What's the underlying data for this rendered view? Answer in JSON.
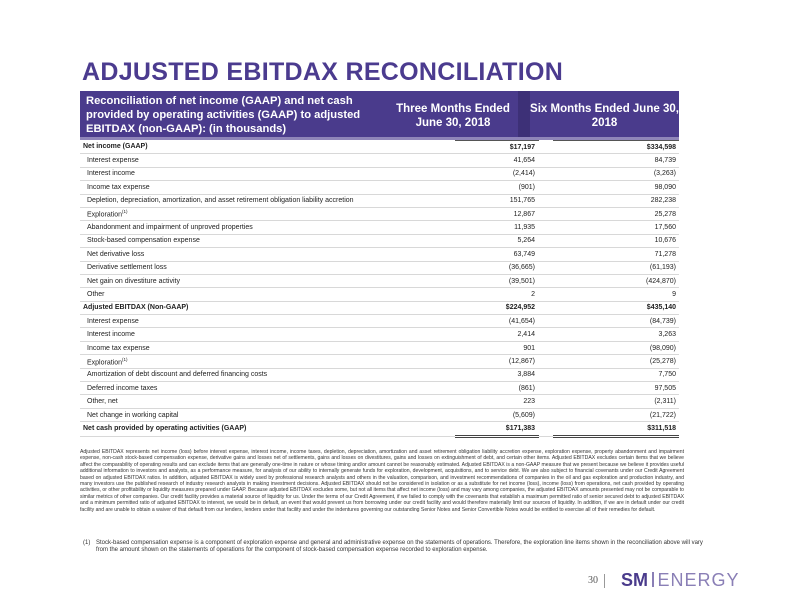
{
  "page": {
    "title": "ADJUSTED EBITDAX RECONCILIATION",
    "page_number": "30"
  },
  "table": {
    "header_label": "Reconciliation of net income (GAAP) and net cash provided by operating activities (GAAP) to adjusted EBITDAX (non-GAAP):  (in thousands)",
    "col1_header": "Three Months Ended June 30, 2018",
    "col2_header": "Six Months Ended June 30, 2018",
    "rows": [
      {
        "label": "Net income (GAAP)",
        "v1": "$17,197",
        "v2": "$334,598",
        "bold": true,
        "sup": ""
      },
      {
        "label": "Interest expense",
        "v1": "41,654",
        "v2": "84,739",
        "bold": false,
        "sup": ""
      },
      {
        "label": "Interest income",
        "v1": "(2,414)",
        "v2": "(3,263)",
        "bold": false,
        "sup": ""
      },
      {
        "label": "Income tax expense",
        "v1": "(901)",
        "v2": "98,090",
        "bold": false,
        "sup": ""
      },
      {
        "label": "Depletion, depreciation, amortization, and asset retirement obligation liability accretion",
        "v1": "151,765",
        "v2": "282,238",
        "bold": false,
        "sup": ""
      },
      {
        "label": "Exploration",
        "v1": "12,867",
        "v2": "25,278",
        "bold": false,
        "sup": "(1)"
      },
      {
        "label": "Abandonment and impairment of unproved properties",
        "v1": "11,935",
        "v2": "17,560",
        "bold": false,
        "sup": ""
      },
      {
        "label": "Stock-based compensation expense",
        "v1": "5,264",
        "v2": "10,676",
        "bold": false,
        "sup": ""
      },
      {
        "label": "Net derivative loss",
        "v1": "63,749",
        "v2": "71,278",
        "bold": false,
        "sup": ""
      },
      {
        "label": "Derivative settlement loss",
        "v1": "(36,665)",
        "v2": "(61,193)",
        "bold": false,
        "sup": ""
      },
      {
        "label": "Net gain on divestiture activity",
        "v1": "(39,501)",
        "v2": "(424,870)",
        "bold": false,
        "sup": ""
      },
      {
        "label": "Other",
        "v1": "2",
        "v2": "9",
        "bold": false,
        "sup": ""
      },
      {
        "label": "Adjusted EBITDAX (Non-GAAP)",
        "v1": "$224,952",
        "v2": "$435,140",
        "bold": true,
        "sup": ""
      },
      {
        "label": "Interest expense",
        "v1": "(41,654)",
        "v2": "(84,739)",
        "bold": false,
        "sup": ""
      },
      {
        "label": "Interest income",
        "v1": "2,414",
        "v2": "3,263",
        "bold": false,
        "sup": ""
      },
      {
        "label": "Income tax expense",
        "v1": "901",
        "v2": "(98,090)",
        "bold": false,
        "sup": ""
      },
      {
        "label": "Exploration",
        "v1": "(12,867)",
        "v2": "(25,278)",
        "bold": false,
        "sup": "(1)"
      },
      {
        "label": "Amortization of debt discount and deferred financing costs",
        "v1": "3,884",
        "v2": "7,750",
        "bold": false,
        "sup": ""
      },
      {
        "label": "Deferred income taxes",
        "v1": "(861)",
        "v2": "97,505",
        "bold": false,
        "sup": ""
      },
      {
        "label": "Other, net",
        "v1": "223",
        "v2": "(2,311)",
        "bold": false,
        "sup": ""
      },
      {
        "label": "Net change in working capital",
        "v1": "(5,609)",
        "v2": "(21,722)",
        "bold": false,
        "sup": ""
      },
      {
        "label": "Net cash provided by operating activities (GAAP)",
        "v1": "$171,383",
        "v2": "$311,518",
        "bold": true,
        "sup": ""
      }
    ]
  },
  "notes": {
    "paragraph": "Adjusted EBITDAX represents net income (loss) before interest expense, interest income, income taxes, depletion, depreciation, amortization and asset retirement obligation liability accretion expense, exploration expense, property abandonment and impairment expense, non-cash stock-based compensation expense, derivative gains and losses net of settlements, gains and losses on divestitures, gains and losses on extinguishment of debt, and certain other items. Adjusted EBITDAX excludes certain items that we believe affect the comparability of operating results and can exclude items that are generally one-time in nature or whose timing and/or amount cannot be reasonably estimated. Adjusted EBITDAX is a non-GAAP measure that we present because we believe it provides useful additional information to investors and analysts, as a performance measure, for analysis of our ability to internally generate funds for exploration, development, acquisitions, and to service debt. We are also subject to financial covenants under our Credit Agreement based on adjusted EBITDAX ratios. In addition, adjusted EBITDAX is widely used by professional research analysts and others in the valuation, comparison, and investment recommendations of companies in the oil and gas exploration and production industry, and many investors use the published research of industry research analysts in making investment decisions. Adjusted EBITDAX should not be considered in isolation or as a substitute for net income (loss), income (loss) from operations, net cash provided by operating activities, or other profitability or liquidity measures prepared under GAAP. Because adjusted EBITDAX excludes some, but not all items that affect net income (loss) and may vary among companies, the adjusted EBITDAX amounts presented may not be comparable to similar metrics of other companies. Our credit facility provides a material source of liquidity for us. Under the terms of our Credit Agreement, if we failed to comply with the covenants that establish a maximum permitted ratio of senior secured debt to adjusted EBITDAX and a minimum permitted ratio of adjusted EBITDAX to interest, we would be in default, an event that would prevent us from borrowing under our credit facility and would therefore materially limit our sources of liquidity. In addition, if we are in default under our credit facility and are unable to obtain a waiver of that default from our lenders, lenders under that facility and under the indentures governing our outstanding Senior Notes and Senior Convertible Notes would be entitled to exercise all of their remedies for default.",
    "footnote_number": "(1)",
    "footnote_text": "Stock-based compensation expense is a component of exploration expense and general and administrative expense on the statements of operations. Therefore, the exploration line items shown in the reconciliation above will vary from the amount shown on the statements of operations for the component of stock-based compensation expense recorded to exploration expense."
  },
  "logo": {
    "part1": "SM",
    "part2": "ENERGY",
    "colors": {
      "primary": "#4a3b8c",
      "secondary": "#8a7fb6"
    }
  }
}
